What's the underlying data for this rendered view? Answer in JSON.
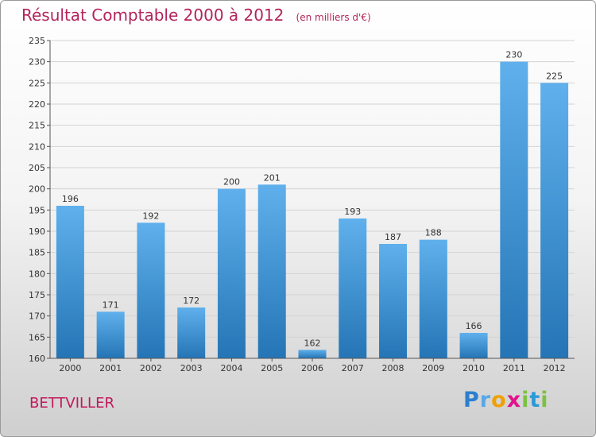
{
  "header": {
    "title": "Résultat Comptable 2000 à 2012",
    "unit": "(en milliers d'€)"
  },
  "footer": {
    "commune": "BETTVILLER",
    "logo_letters": [
      {
        "char": "P",
        "color": "#2b7fd0"
      },
      {
        "char": "r",
        "color": "#58a8e8"
      },
      {
        "char": "o",
        "color": "#f0a000"
      },
      {
        "char": "x",
        "color": "#e0148c"
      },
      {
        "char": "i",
        "color": "#7cc242"
      },
      {
        "char": "t",
        "color": "#2b9ad8"
      },
      {
        "char": "i",
        "color": "#7cc242"
      }
    ]
  },
  "colors": {
    "bar_light": "#5fb0ec",
    "bar_dark": "#2575b6",
    "grid": "#d3d3d3",
    "axis": "#555555"
  },
  "chart_data": {
    "type": "bar",
    "title": "Résultat Comptable 2000 à 2012",
    "subtitle": "(en milliers d'€)",
    "xlabel": "",
    "ylabel": "",
    "categories": [
      "2000",
      "2001",
      "2002",
      "2003",
      "2004",
      "2005",
      "2006",
      "2007",
      "2008",
      "2009",
      "2010",
      "2011",
      "2012"
    ],
    "values": [
      196,
      171,
      192,
      172,
      200,
      201,
      162,
      193,
      187,
      188,
      166,
      230,
      225
    ],
    "data_labels": [
      "196",
      "171",
      "192",
      "172",
      "200",
      "201",
      "162",
      "193",
      "187",
      "188",
      "166",
      "230",
      "225"
    ],
    "ylim": [
      160,
      235
    ],
    "yticks": [
      160,
      165,
      170,
      175,
      180,
      185,
      190,
      195,
      200,
      205,
      210,
      215,
      220,
      225,
      230,
      235
    ],
    "grid": true,
    "legend": "none"
  }
}
